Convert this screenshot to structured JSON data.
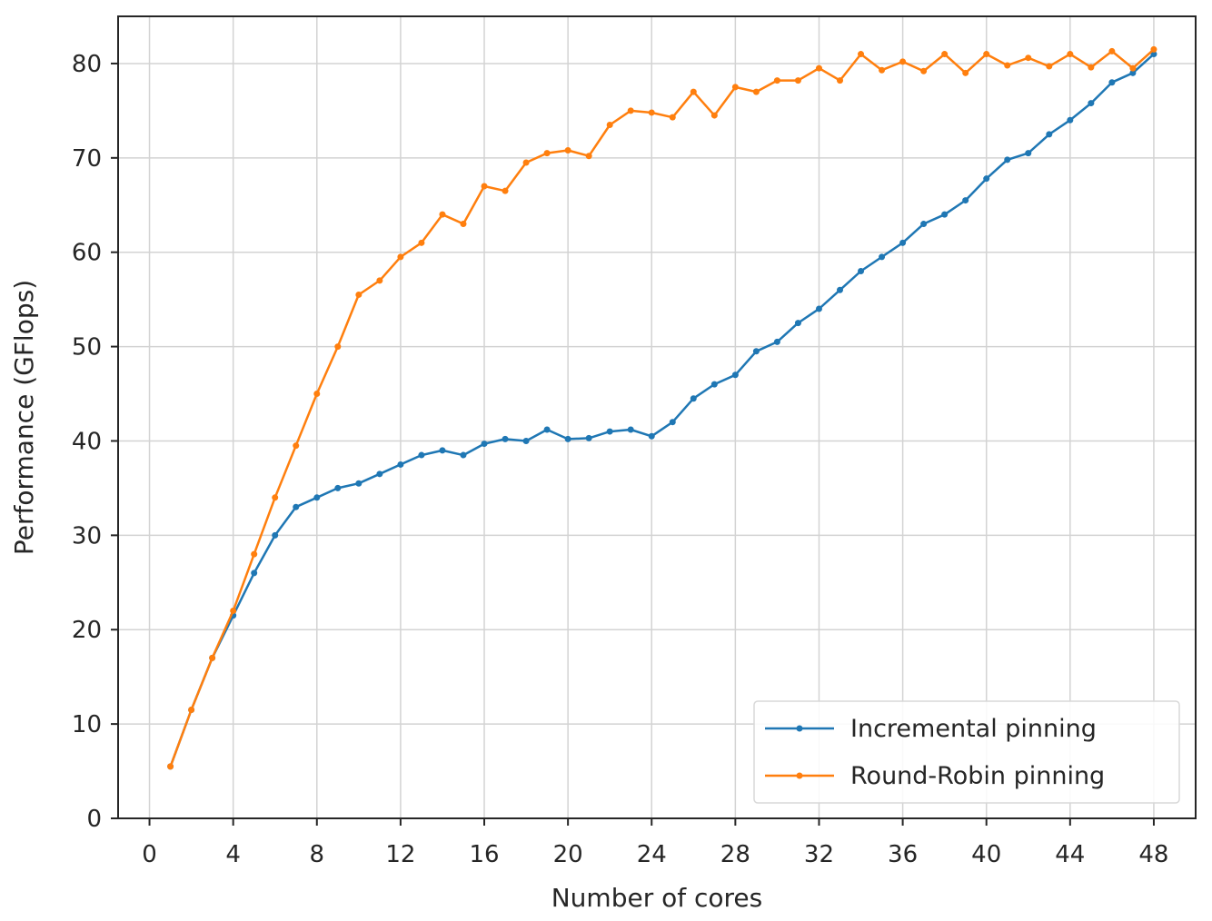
{
  "chart_data": {
    "type": "line",
    "xlabel": "Number of cores",
    "ylabel": "Performance (GFlops)",
    "xlim": [
      -1.5,
      50
    ],
    "ylim": [
      0,
      85
    ],
    "xticks": [
      0,
      4,
      8,
      12,
      16,
      20,
      24,
      28,
      32,
      36,
      40,
      44,
      48
    ],
    "yticks": [
      0,
      10,
      20,
      30,
      40,
      50,
      60,
      70,
      80
    ],
    "grid": true,
    "legend_position": "bottom-right",
    "series": [
      {
        "name": "Incremental pinning",
        "color": "#1f77b4",
        "marker": "point",
        "x": [
          1,
          2,
          3,
          4,
          5,
          6,
          7,
          8,
          9,
          10,
          11,
          12,
          13,
          14,
          15,
          16,
          17,
          18,
          19,
          20,
          21,
          22,
          23,
          24,
          25,
          26,
          27,
          28,
          29,
          30,
          31,
          32,
          33,
          34,
          35,
          36,
          37,
          38,
          39,
          40,
          41,
          42,
          43,
          44,
          45,
          46,
          47,
          48
        ],
        "y": [
          5.5,
          11.5,
          17,
          21.5,
          26,
          30,
          33,
          34,
          35,
          35.5,
          36.5,
          37.5,
          38.5,
          39,
          38.5,
          39.7,
          40.2,
          40,
          41.2,
          40.2,
          40.3,
          41,
          41.2,
          40.5,
          42,
          44.5,
          46,
          47,
          49.5,
          50.5,
          52.5,
          54,
          56,
          58,
          59.5,
          61,
          63,
          64,
          65.5,
          67.8,
          69.8,
          70.5,
          72.5,
          74,
          75.8,
          78,
          79,
          81
        ]
      },
      {
        "name": "Round-Robin pinning",
        "color": "#ff7f0e",
        "marker": "point",
        "x": [
          1,
          2,
          3,
          4,
          5,
          6,
          7,
          8,
          9,
          10,
          11,
          12,
          13,
          14,
          15,
          16,
          17,
          18,
          19,
          20,
          21,
          22,
          23,
          24,
          25,
          26,
          27,
          28,
          29,
          30,
          31,
          32,
          33,
          34,
          35,
          36,
          37,
          38,
          39,
          40,
          41,
          42,
          43,
          44,
          45,
          46,
          47,
          48
        ],
        "y": [
          5.5,
          11.5,
          17,
          22,
          28,
          34,
          39.5,
          45,
          50,
          55.5,
          57,
          59.5,
          61,
          64,
          63,
          67,
          66.5,
          69.5,
          70.5,
          70.8,
          70.2,
          73.5,
          75,
          74.8,
          74.3,
          77,
          74.5,
          77.5,
          77,
          78.2,
          78.2,
          79.5,
          78.2,
          81,
          79.3,
          80.2,
          79.2,
          81,
          79,
          81,
          79.8,
          80.6,
          79.7,
          81,
          79.6,
          81.3,
          79.5,
          81.5
        ]
      }
    ]
  }
}
